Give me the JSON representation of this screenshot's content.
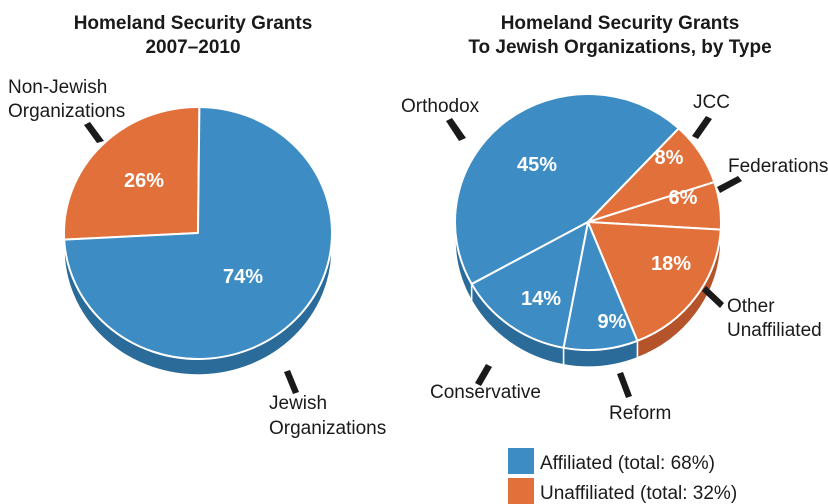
{
  "colors": {
    "affiliated": "#3d8cc4",
    "affiliated_side": "#2a6b99",
    "unaffiliated": "#e2703a",
    "unaffiliated_side": "#b5542a",
    "separator": "#ffffff",
    "text": "#1a1a1a"
  },
  "chart_data": [
    {
      "type": "pie",
      "title_line1": "Homeland Security Grants",
      "title_line2": "2007–2010",
      "slices": [
        {
          "label_lines": [
            "Non-Jewish",
            "Organizations"
          ],
          "value": 26,
          "pct_label": "26%",
          "group": "unaffiliated"
        },
        {
          "label_lines": [
            "Jewish",
            "Organizations"
          ],
          "value": 74,
          "pct_label": "74%",
          "group": "affiliated"
        }
      ]
    },
    {
      "type": "pie",
      "title_line1": "Homeland Security Grants",
      "title_line2": "To Jewish Organizations, by Type",
      "slices": [
        {
          "label_lines": [
            "Orthodox"
          ],
          "value": 45,
          "pct_label": "45%",
          "group": "affiliated"
        },
        {
          "label_lines": [
            "JCC"
          ],
          "value": 8,
          "pct_label": "8%",
          "group": "unaffiliated"
        },
        {
          "label_lines": [
            "Federations"
          ],
          "value": 6,
          "pct_label": "6%",
          "group": "unaffiliated"
        },
        {
          "label_lines": [
            "Other",
            "Unaffiliated"
          ],
          "value": 18,
          "pct_label": "18%",
          "group": "unaffiliated"
        },
        {
          "label_lines": [
            "Reform"
          ],
          "value": 9,
          "pct_label": "9%",
          "group": "affiliated"
        },
        {
          "label_lines": [
            "Conservative"
          ],
          "value": 14,
          "pct_label": "14%",
          "group": "affiliated"
        }
      ],
      "legend": [
        {
          "label": "Affiliated (total: 68%)",
          "group": "affiliated"
        },
        {
          "label": "Unaffiliated (total: 32%)",
          "group": "unaffiliated"
        }
      ]
    }
  ]
}
